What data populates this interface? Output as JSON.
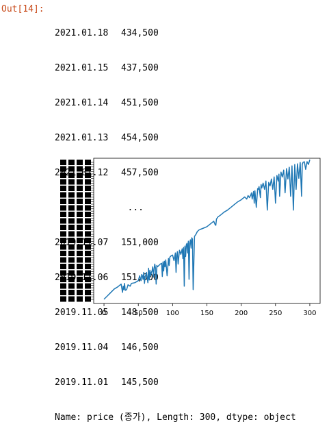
{
  "cell": {
    "prompt": "Out[14]:",
    "rows_top": [
      {
        "date": "2021.01.18",
        "price": "434,500"
      },
      {
        "date": "2021.01.15",
        "price": "437,500"
      },
      {
        "date": "2021.01.14",
        "price": "451,500"
      },
      {
        "date": "2021.01.13",
        "price": "454,500"
      },
      {
        "date": "2021.01.12",
        "price": "457,500"
      }
    ],
    "ellipsis": "...",
    "rows_bottom": [
      {
        "date": "2019.11.07",
        "price": "151,000"
      },
      {
        "date": "2019.11.06",
        "price": "151,000"
      },
      {
        "date": "2019.11.05",
        "price": "148,500"
      },
      {
        "date": "2019.11.04",
        "price": "146,500"
      },
      {
        "date": "2019.11.01",
        "price": "145,500"
      }
    ],
    "summary": "Name: price (종가), Length: 300, dtype: object"
  },
  "chart_data": {
    "type": "line",
    "line_color": "#1f77b4",
    "xlim": [
      -15,
      315
    ],
    "xticks": [
      0,
      50,
      100,
      150,
      200,
      250,
      300
    ],
    "ylim": [
      -5,
      205
    ],
    "ylabel_note": "y tick labels are overlapping and illegible",
    "series": [
      {
        "x": [
          0,
          5,
          10,
          15,
          20,
          25,
          27,
          28,
          29,
          30,
          31,
          33,
          35,
          38,
          40,
          45,
          50,
          52,
          54,
          55,
          56,
          57,
          58,
          59,
          60,
          62,
          64,
          65,
          66,
          67,
          68,
          69,
          70,
          71,
          72,
          73,
          74,
          75,
          76,
          77,
          78,
          80,
          82,
          84,
          85,
          86,
          87,
          88,
          89,
          90,
          92,
          94,
          95,
          96,
          98,
          100,
          102,
          104,
          105,
          106,
          107,
          108,
          110,
          112,
          114,
          115,
          116,
          117,
          118,
          119,
          120,
          121,
          122,
          123,
          124,
          125,
          126,
          127,
          128,
          129,
          130,
          132,
          134,
          135,
          136,
          138,
          140,
          145,
          150,
          155,
          160,
          162,
          163,
          164,
          166,
          170,
          175,
          180,
          185,
          190,
          195,
          200,
          205,
          208,
          210,
          212,
          214,
          215,
          216,
          218,
          219,
          220,
          222,
          224,
          225,
          226,
          228,
          229,
          230,
          232,
          234,
          236,
          238,
          240,
          242,
          244,
          246,
          248,
          250,
          252,
          254,
          255,
          256,
          258,
          260,
          262,
          264,
          266,
          268,
          270,
          272,
          274,
          276,
          278,
          280,
          282,
          284,
          286,
          288,
          289,
          290,
          292,
          294,
          296,
          298,
          300
        ],
        "y": [
          1,
          6,
          11,
          16,
          19,
          23,
          11,
          20,
          15,
          24,
          14,
          15,
          22,
          20,
          24,
          25,
          28,
          35,
          28,
          37,
          35,
          30,
          40,
          24,
          33,
          40,
          25,
          46,
          29,
          43,
          35,
          40,
          42,
          48,
          33,
          45,
          52,
          46,
          23,
          50,
          48,
          50,
          52,
          53,
          34,
          55,
          42,
          56,
          48,
          58,
          35,
          60,
          50,
          62,
          64,
          65,
          57,
          68,
          40,
          65,
          70,
          52,
          72,
          66,
          74,
          60,
          76,
          20,
          78,
          63,
          80,
          82,
          68,
          85,
          30,
          82,
          87,
          75,
          90,
          88,
          15,
          92,
          95,
          97,
          99,
          101,
          102,
          104,
          106,
          110,
          114,
          109,
          108,
          117,
          120,
          123,
          127,
          130,
          134,
          138,
          142,
          145,
          149,
          146,
          151,
          148,
          152,
          155,
          146,
          157,
          140,
          158,
          134,
          161,
          160,
          164,
          148,
          167,
          162,
          169,
          160,
          172,
          130,
          170,
          165,
          175,
          160,
          178,
          140,
          180,
          172,
          182,
          150,
          185,
          178,
          188,
          155,
          190,
          175,
          192,
          150,
          194,
          130,
          196,
          160,
          197,
          176,
          199,
          150,
          196,
          199,
          200,
          189,
          200,
          196,
          203
        ]
      }
    ]
  }
}
